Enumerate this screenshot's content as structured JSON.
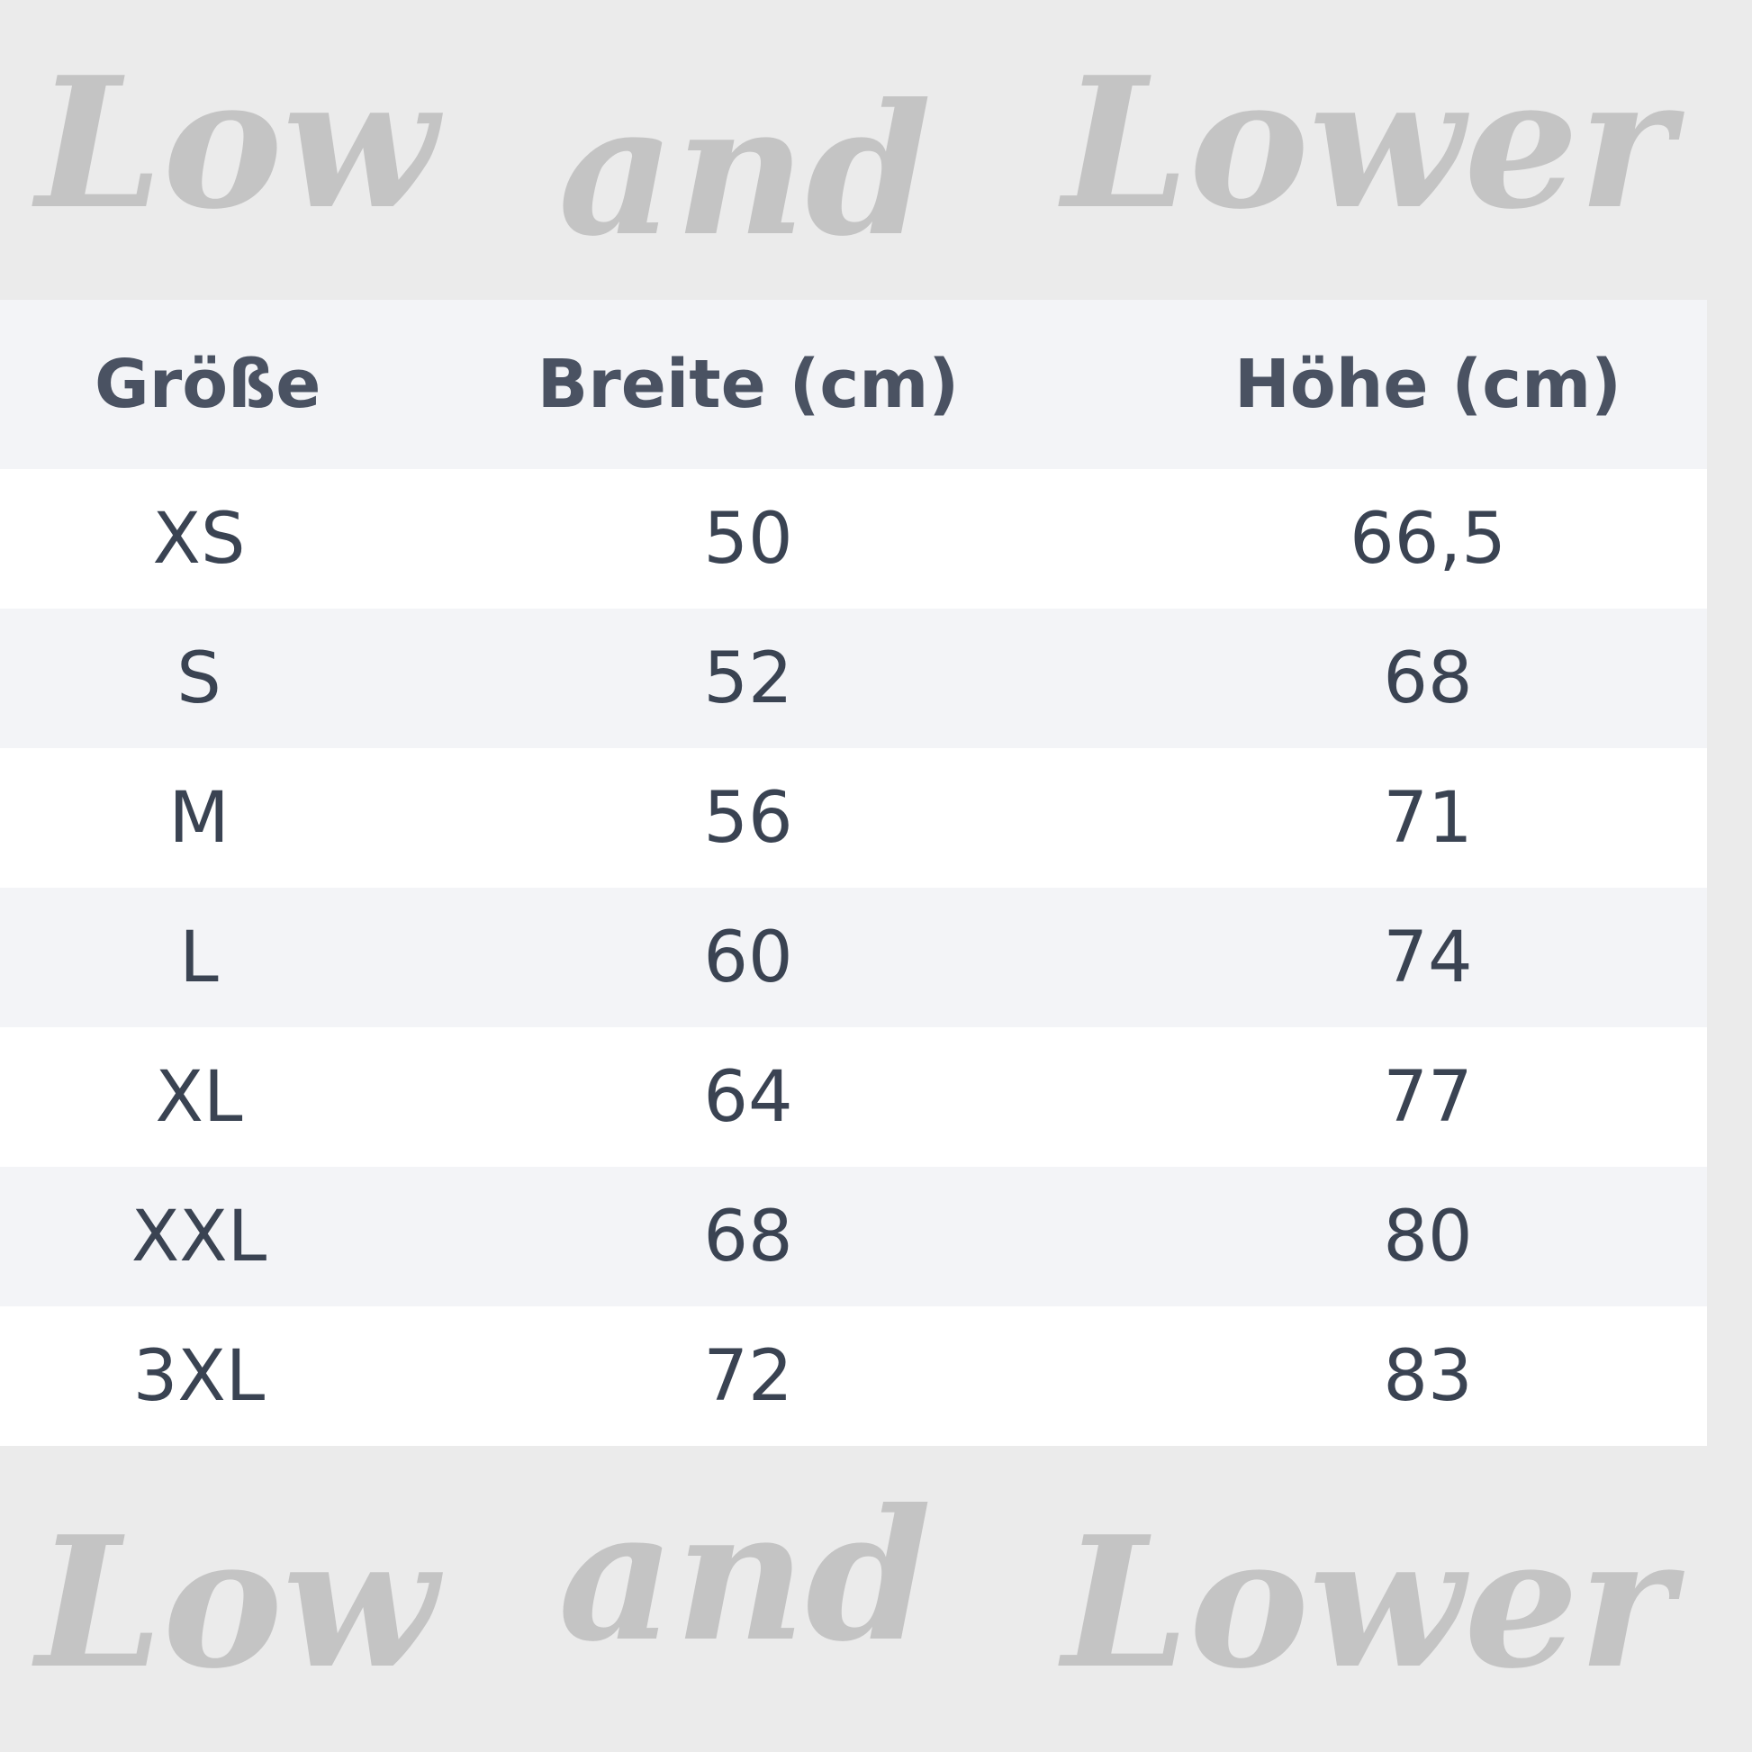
{
  "watermark": {
    "text": [
      "Low",
      "and",
      "Lower"
    ],
    "color": "#c4c4c4"
  },
  "table": {
    "headers": [
      "Größe",
      "Breite (cm)",
      "Höhe (cm)"
    ],
    "rows": [
      [
        "XS",
        "50",
        "66,5"
      ],
      [
        "S",
        "52",
        "68"
      ],
      [
        "M",
        "56",
        "71"
      ],
      [
        "L",
        "60",
        "74"
      ],
      [
        "XL",
        "64",
        "77"
      ],
      [
        "XXL",
        "68",
        "80"
      ],
      [
        "3XL",
        "72",
        "83"
      ]
    ]
  }
}
